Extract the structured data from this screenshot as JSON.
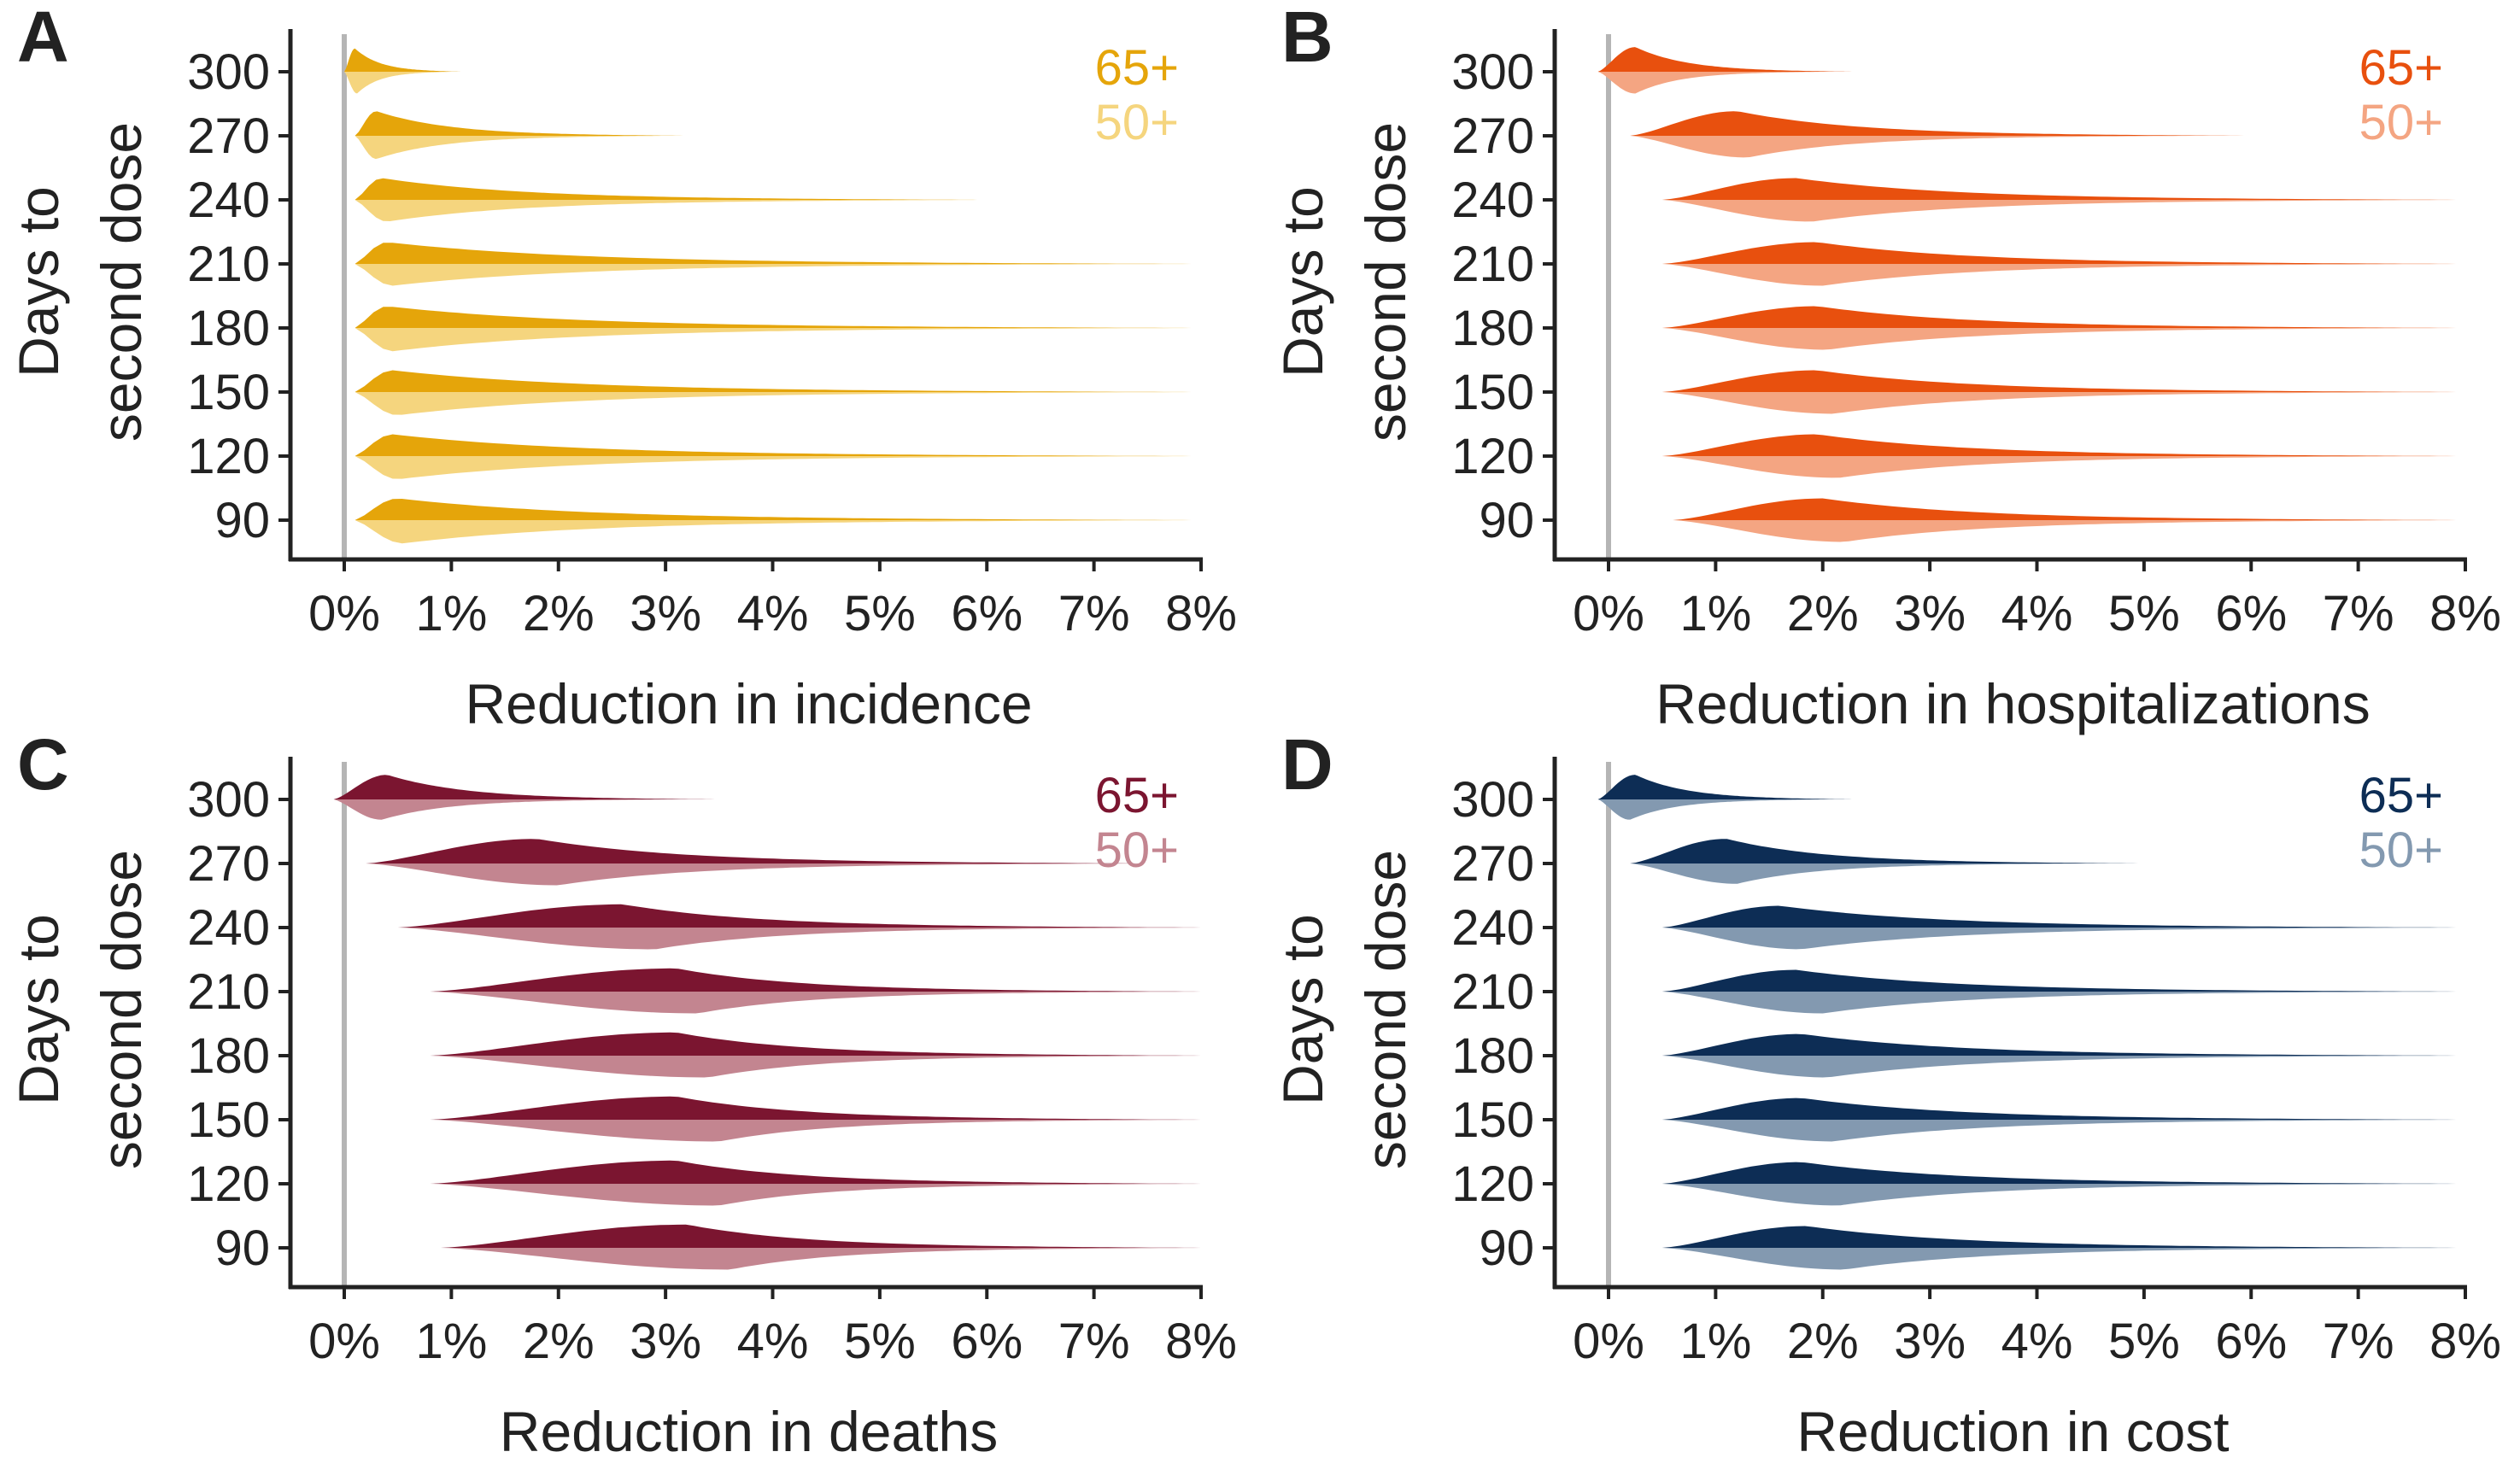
{
  "chart_data": [
    {
      "type": "violin",
      "panel_label": "A",
      "xlabel": "Reduction in incidence",
      "ylabel": [
        "Days to",
        "second dose"
      ],
      "xlim": [
        0,
        8
      ],
      "x_ticks": [
        "0%",
        "1%",
        "2%",
        "3%",
        "4%",
        "5%",
        "6%",
        "7%",
        "8%"
      ],
      "categories": [
        "300",
        "270",
        "240",
        "210",
        "180",
        "150",
        "120",
        "90"
      ],
      "zero_line": true,
      "legend_position": "top-right",
      "series": [
        {
          "name": "65+",
          "color": "#e5a50a",
          "side": "upper",
          "distributions": [
            {
              "min": 0.0,
              "mode": 0.1,
              "max": 1.1,
              "height": 0.8
            },
            {
              "min": 0.1,
              "mode": 0.3,
              "max": 3.2,
              "height": 0.85
            },
            {
              "min": 0.1,
              "mode": 0.35,
              "max": 6.0,
              "height": 0.75
            },
            {
              "min": 0.1,
              "mode": 0.4,
              "max": 8.0,
              "height": 0.75
            },
            {
              "min": 0.1,
              "mode": 0.4,
              "max": 8.0,
              "height": 0.75
            },
            {
              "min": 0.1,
              "mode": 0.45,
              "max": 8.0,
              "height": 0.75
            },
            {
              "min": 0.1,
              "mode": 0.45,
              "max": 8.0,
              "height": 0.75
            },
            {
              "min": 0.1,
              "mode": 0.5,
              "max": 8.0,
              "height": 0.75
            }
          ]
        },
        {
          "name": "50+",
          "color": "#f5d57e",
          "side": "lower",
          "distributions": [
            {
              "min": 0.0,
              "mode": 0.12,
              "max": 1.0,
              "height": 0.75
            },
            {
              "min": 0.1,
              "mode": 0.3,
              "max": 3.0,
              "height": 0.8
            },
            {
              "min": 0.1,
              "mode": 0.4,
              "max": 6.0,
              "height": 0.75
            },
            {
              "min": 0.1,
              "mode": 0.45,
              "max": 8.0,
              "height": 0.75
            },
            {
              "min": 0.1,
              "mode": 0.45,
              "max": 8.0,
              "height": 0.8
            },
            {
              "min": 0.1,
              "mode": 0.5,
              "max": 8.0,
              "height": 0.8
            },
            {
              "min": 0.1,
              "mode": 0.5,
              "max": 8.0,
              "height": 0.8
            },
            {
              "min": 0.1,
              "mode": 0.55,
              "max": 8.0,
              "height": 0.8
            }
          ]
        }
      ]
    },
    {
      "type": "violin",
      "panel_label": "B",
      "xlabel": "Reduction in hospitalizations",
      "ylabel": [
        "Days to",
        "second dose"
      ],
      "xlim": [
        0,
        8
      ],
      "x_ticks": [
        "0%",
        "1%",
        "2%",
        "3%",
        "4%",
        "5%",
        "6%",
        "7%",
        "8%"
      ],
      "categories": [
        "300",
        "270",
        "240",
        "210",
        "180",
        "150",
        "120",
        "90"
      ],
      "zero_line": true,
      "legend_position": "top-right",
      "series": [
        {
          "name": "65+",
          "color": "#e8500e",
          "side": "upper",
          "distributions": [
            {
              "min": -0.1,
              "mode": 0.25,
              "max": 2.3,
              "height": 0.85
            },
            {
              "min": 0.2,
              "mode": 1.2,
              "max": 6.0,
              "height": 0.85
            },
            {
              "min": 0.5,
              "mode": 1.75,
              "max": 8.0,
              "height": 0.75
            },
            {
              "min": 0.5,
              "mode": 1.95,
              "max": 8.0,
              "height": 0.75
            },
            {
              "min": 0.5,
              "mode": 1.95,
              "max": 8.0,
              "height": 0.75
            },
            {
              "min": 0.5,
              "mode": 1.95,
              "max": 8.0,
              "height": 0.75
            },
            {
              "min": 0.5,
              "mode": 1.95,
              "max": 8.0,
              "height": 0.75
            },
            {
              "min": 0.6,
              "mode": 2.0,
              "max": 8.0,
              "height": 0.75
            }
          ]
        },
        {
          "name": "50+",
          "color": "#f4a582",
          "side": "lower",
          "distributions": [
            {
              "min": -0.1,
              "mode": 0.25,
              "max": 2.0,
              "height": 0.75
            },
            {
              "min": 0.2,
              "mode": 1.3,
              "max": 5.5,
              "height": 0.75
            },
            {
              "min": 0.5,
              "mode": 1.9,
              "max": 8.0,
              "height": 0.75
            },
            {
              "min": 0.5,
              "mode": 2.0,
              "max": 8.0,
              "height": 0.75
            },
            {
              "min": 0.5,
              "mode": 2.05,
              "max": 8.0,
              "height": 0.75
            },
            {
              "min": 0.5,
              "mode": 2.1,
              "max": 8.0,
              "height": 0.75
            },
            {
              "min": 0.5,
              "mode": 2.15,
              "max": 8.0,
              "height": 0.75
            },
            {
              "min": 0.6,
              "mode": 2.2,
              "max": 8.0,
              "height": 0.75
            }
          ]
        }
      ]
    },
    {
      "type": "violin",
      "panel_label": "C",
      "xlabel": "Reduction in deaths",
      "ylabel": [
        "Days to",
        "second dose"
      ],
      "xlim": [
        0,
        8
      ],
      "x_ticks": [
        "0%",
        "1%",
        "2%",
        "3%",
        "4%",
        "5%",
        "6%",
        "7%",
        "8%"
      ],
      "categories": [
        "300",
        "270",
        "240",
        "210",
        "180",
        "150",
        "120",
        "90"
      ],
      "zero_line": true,
      "legend_position": "top-right",
      "series": [
        {
          "name": "65+",
          "color": "#7b1530",
          "side": "upper",
          "distributions": [
            {
              "min": -0.1,
              "mode": 0.4,
              "max": 3.5,
              "height": 0.85
            },
            {
              "min": 0.2,
              "mode": 1.8,
              "max": 7.5,
              "height": 0.85
            },
            {
              "min": 0.5,
              "mode": 2.6,
              "max": 8.0,
              "height": 0.8
            },
            {
              "min": 0.8,
              "mode": 3.1,
              "max": 8.0,
              "height": 0.8
            },
            {
              "min": 0.8,
              "mode": 3.1,
              "max": 8.0,
              "height": 0.8
            },
            {
              "min": 0.8,
              "mode": 3.1,
              "max": 8.0,
              "height": 0.8
            },
            {
              "min": 0.8,
              "mode": 3.1,
              "max": 8.0,
              "height": 0.8
            },
            {
              "min": 0.9,
              "mode": 3.2,
              "max": 8.0,
              "height": 0.8
            }
          ]
        },
        {
          "name": "50+",
          "color": "#c38590",
          "side": "lower",
          "distributions": [
            {
              "min": -0.1,
              "mode": 0.35,
              "max": 3.0,
              "height": 0.7
            },
            {
              "min": 0.2,
              "mode": 2.0,
              "max": 7.5,
              "height": 0.75
            },
            {
              "min": 0.5,
              "mode": 2.9,
              "max": 8.0,
              "height": 0.75
            },
            {
              "min": 0.8,
              "mode": 3.3,
              "max": 8.0,
              "height": 0.75
            },
            {
              "min": 0.8,
              "mode": 3.4,
              "max": 8.0,
              "height": 0.75
            },
            {
              "min": 0.8,
              "mode": 3.5,
              "max": 8.0,
              "height": 0.75
            },
            {
              "min": 0.8,
              "mode": 3.5,
              "max": 8.0,
              "height": 0.75
            },
            {
              "min": 0.9,
              "mode": 3.6,
              "max": 8.0,
              "height": 0.75
            }
          ]
        }
      ]
    },
    {
      "type": "violin",
      "panel_label": "D",
      "xlabel": "Reduction in cost",
      "ylabel": [
        "Days to",
        "second dose"
      ],
      "xlim": [
        0,
        8
      ],
      "x_ticks": [
        "0%",
        "1%",
        "2%",
        "3%",
        "4%",
        "5%",
        "6%",
        "7%",
        "8%"
      ],
      "categories": [
        "300",
        "270",
        "240",
        "210",
        "180",
        "150",
        "120",
        "90"
      ],
      "zero_line": true,
      "legend_position": "top-right",
      "series": [
        {
          "name": "65+",
          "color": "#0d2d55",
          "side": "upper",
          "distributions": [
            {
              "min": -0.1,
              "mode": 0.25,
              "max": 2.3,
              "height": 0.85
            },
            {
              "min": 0.2,
              "mode": 1.1,
              "max": 5.0,
              "height": 0.85
            },
            {
              "min": 0.5,
              "mode": 1.6,
              "max": 8.0,
              "height": 0.75
            },
            {
              "min": 0.5,
              "mode": 1.75,
              "max": 8.0,
              "height": 0.75
            },
            {
              "min": 0.5,
              "mode": 1.8,
              "max": 8.0,
              "height": 0.75
            },
            {
              "min": 0.5,
              "mode": 1.8,
              "max": 8.0,
              "height": 0.75
            },
            {
              "min": 0.5,
              "mode": 1.8,
              "max": 8.0,
              "height": 0.75
            },
            {
              "min": 0.5,
              "mode": 1.85,
              "max": 8.0,
              "height": 0.75
            }
          ]
        },
        {
          "name": "50+",
          "color": "#8399b0",
          "side": "lower",
          "distributions": [
            {
              "min": -0.1,
              "mode": 0.2,
              "max": 2.0,
              "height": 0.7
            },
            {
              "min": 0.2,
              "mode": 1.2,
              "max": 4.5,
              "height": 0.7
            },
            {
              "min": 0.5,
              "mode": 1.8,
              "max": 8.0,
              "height": 0.75
            },
            {
              "min": 0.5,
              "mode": 2.0,
              "max": 8.0,
              "height": 0.75
            },
            {
              "min": 0.5,
              "mode": 2.05,
              "max": 8.0,
              "height": 0.75
            },
            {
              "min": 0.5,
              "mode": 2.1,
              "max": 8.0,
              "height": 0.75
            },
            {
              "min": 0.5,
              "mode": 2.15,
              "max": 8.0,
              "height": 0.75
            },
            {
              "min": 0.5,
              "mode": 2.2,
              "max": 8.0,
              "height": 0.75
            }
          ]
        }
      ]
    }
  ]
}
